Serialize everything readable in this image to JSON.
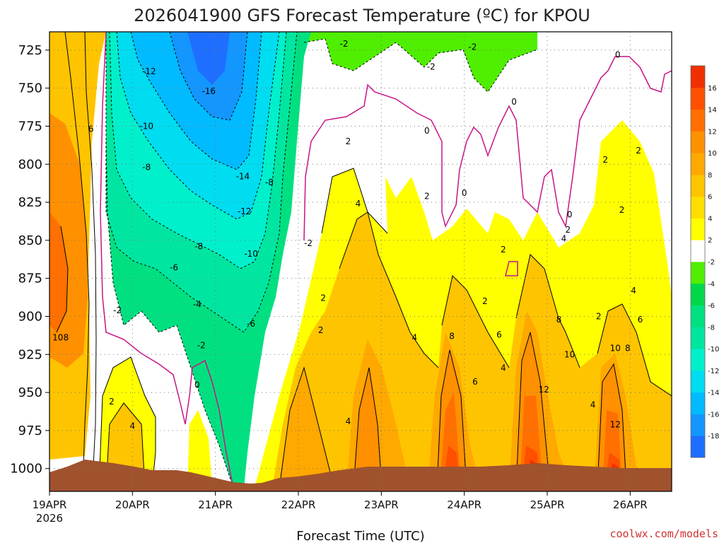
{
  "chart_data": {
    "type": "heatmap",
    "title": "2026041900 GFS Forecast Temperature (ºC) for KPOU",
    "xlabel": "Forecast Time (UTC)",
    "ylabel": "",
    "credit": "coolwx.com/models",
    "x_ticks": [
      "19APR",
      "20APR",
      "21APR",
      "22APR",
      "23APR",
      "24APR",
      "25APR",
      "26APR"
    ],
    "x_year": "2026",
    "xlim_days": [
      0,
      7.5
    ],
    "y_ticks": [
      725,
      750,
      775,
      800,
      825,
      850,
      875,
      900,
      925,
      950,
      975,
      1000
    ],
    "ylim_hpa": [
      1015,
      713
    ],
    "y_reversed": true,
    "colorbar": {
      "levels": [
        -18,
        -16,
        -14,
        -12,
        -10,
        -8,
        -6,
        -4,
        -2,
        2,
        4,
        6,
        8,
        10,
        12,
        14,
        16
      ],
      "colors": [
        "#1e6fff",
        "#1496ff",
        "#00bbff",
        "#00dcf0",
        "#00f0cc",
        "#00e6a0",
        "#00e080",
        "#00d84a",
        "#50ee00",
        "#ffffff",
        "#ffff00",
        "#ffdd00",
        "#ffc400",
        "#ffa800",
        "#ff9000",
        "#ff7000",
        "#ff5000",
        "#f03000"
      ]
    },
    "surface_color": "#a0522d",
    "zero_isotherm_color": "#c71585",
    "contour_labels": [
      {
        "v": "-12",
        "d": 1.2,
        "p": 739
      },
      {
        "v": "-16",
        "d": 1.92,
        "p": 752
      },
      {
        "v": "-10",
        "d": 1.17,
        "p": 775
      },
      {
        "v": "-14",
        "d": 2.33,
        "p": 808
      },
      {
        "v": "-8",
        "d": 1.17,
        "p": 802
      },
      {
        "v": "-8",
        "d": 2.65,
        "p": 812
      },
      {
        "v": "-12",
        "d": 2.35,
        "p": 831
      },
      {
        "v": "-8",
        "d": 1.8,
        "p": 854
      },
      {
        "v": "-10",
        "d": 2.43,
        "p": 859
      },
      {
        "v": "-6",
        "d": 1.5,
        "p": 868
      },
      {
        "v": "-4",
        "d": 1.78,
        "p": 892
      },
      {
        "v": "-6",
        "d": 2.43,
        "p": 905
      },
      {
        "v": "-2",
        "d": 0.82,
        "p": 896
      },
      {
        "v": "-2",
        "d": 1.83,
        "p": 919
      },
      {
        "v": "-2",
        "d": 3.12,
        "p": 852
      },
      {
        "v": "-2",
        "d": 3.55,
        "p": 721
      },
      {
        "v": "-2",
        "d": 5.1,
        "p": 723
      },
      {
        "v": "-2",
        "d": 4.6,
        "p": 736
      },
      {
        "v": "0",
        "d": 1.78,
        "p": 945
      },
      {
        "v": "0",
        "d": 4.55,
        "p": 778
      },
      {
        "v": "0",
        "d": 5.6,
        "p": 759
      },
      {
        "v": "0",
        "d": 5.0,
        "p": 819
      },
      {
        "v": "0",
        "d": 6.27,
        "p": 833
      },
      {
        "v": "0",
        "d": 6.85,
        "p": 728
      },
      {
        "v": "6",
        "d": 0.5,
        "p": 777
      },
      {
        "v": "2",
        "d": 3.3,
        "p": 888
      },
      {
        "v": "2",
        "d": 3.27,
        "p": 909
      },
      {
        "v": "2",
        "d": 3.6,
        "p": 785
      },
      {
        "v": "2",
        "d": 4.55,
        "p": 821
      },
      {
        "v": "2",
        "d": 5.25,
        "p": 890
      },
      {
        "v": "2",
        "d": 5.47,
        "p": 856
      },
      {
        "v": "2",
        "d": 6.25,
        "p": 843
      },
      {
        "v": "2",
        "d": 6.7,
        "p": 797
      },
      {
        "v": "2",
        "d": 6.9,
        "p": 830
      },
      {
        "v": "2",
        "d": 7.1,
        "p": 791
      },
      {
        "v": "2",
        "d": 6.62,
        "p": 900
      },
      {
        "v": "4",
        "d": 3.72,
        "p": 826
      },
      {
        "v": "4",
        "d": 4.4,
        "p": 914
      },
      {
        "v": "4",
        "d": 3.6,
        "p": 969
      },
      {
        "v": "4",
        "d": 1.0,
        "p": 972
      },
      {
        "v": "4",
        "d": 6.2,
        "p": 849
      },
      {
        "v": "4",
        "d": 5.47,
        "p": 934
      },
      {
        "v": "4",
        "d": 6.55,
        "p": 958
      },
      {
        "v": "4",
        "d": 7.04,
        "p": 883
      },
      {
        "v": "2",
        "d": 0.75,
        "p": 956
      },
      {
        "v": "6",
        "d": 5.13,
        "p": 943
      },
      {
        "v": "6",
        "d": 5.42,
        "p": 912
      },
      {
        "v": "6",
        "d": 7.12,
        "p": 902
      },
      {
        "v": "6",
        "d": 6.55,
        "p": 1004
      },
      {
        "v": "8",
        "d": 4.85,
        "p": 913
      },
      {
        "v": "8",
        "d": 6.14,
        "p": 902
      },
      {
        "v": "8",
        "d": 6.97,
        "p": 921
      },
      {
        "v": "8",
        "d": 0.2,
        "p": 914
      },
      {
        "v": "10",
        "d": 0.1,
        "p": 914
      },
      {
        "v": "10",
        "d": 6.27,
        "p": 925
      },
      {
        "v": "10",
        "d": 6.82,
        "p": 921
      },
      {
        "v": "12",
        "d": 5.96,
        "p": 948
      },
      {
        "v": "12",
        "d": 6.82,
        "p": 971
      }
    ]
  }
}
